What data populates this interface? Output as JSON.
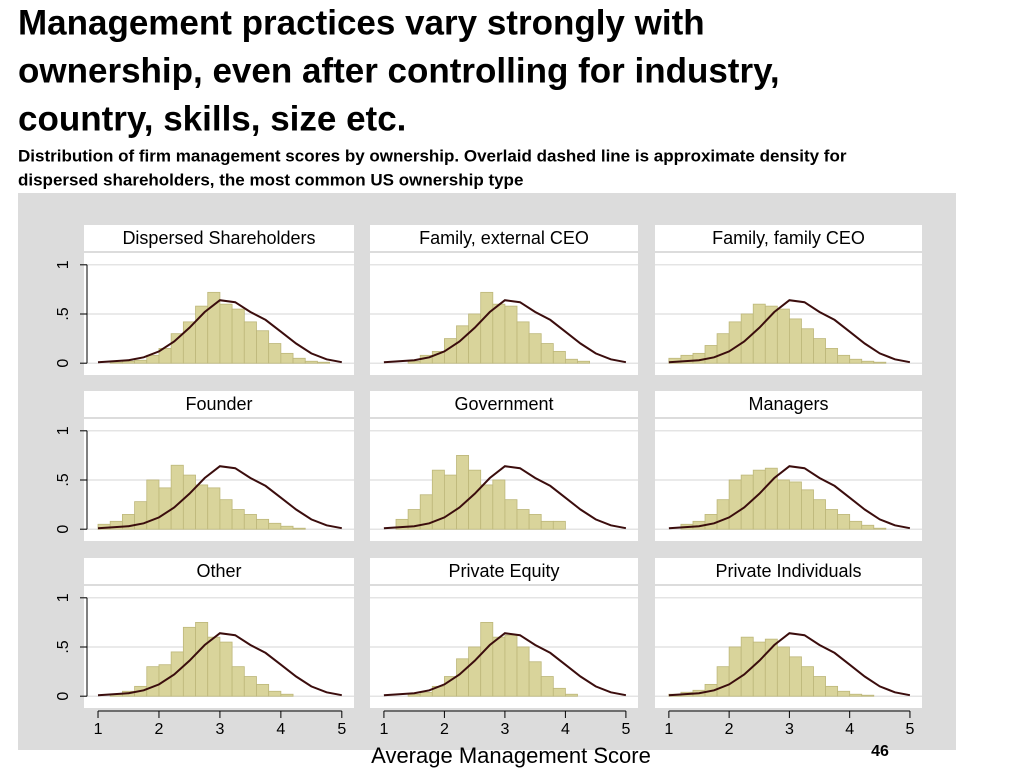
{
  "chart_data": {
    "type": "histogram",
    "title": [
      "Management practices vary strongly with",
      "ownership, even after controlling for industry,",
      "country, skills, size etc."
    ],
    "subtitle": [
      "Distribution of firm management scores by ownership. Overlaid dashed line is approximate density for",
      "dispersed shareholders, the most common US ownership type"
    ],
    "xlabel": "Average Management Score",
    "page_number": "46",
    "color": "#d9d49b",
    "line_color": "#3b0d0d",
    "xlim": [
      0.77,
      5.2
    ],
    "xticks": [
      1,
      2,
      3,
      4,
      5
    ],
    "ylim": [
      -0.12,
      1.12
    ],
    "yticks": [
      0,
      {
        "value": 0.5,
        "label": ".5"
      },
      1
    ],
    "grid": true,
    "bins": [
      1.0,
      1.2,
      1.4,
      1.6,
      1.8,
      2.0,
      2.2,
      2.4,
      2.6,
      2.8,
      3.0,
      3.2,
      3.4,
      3.6,
      3.8,
      4.0,
      4.2,
      4.4,
      4.6,
      4.8,
      5.0
    ],
    "density": {
      "x": [
        1,
        1.25,
        1.5,
        1.75,
        2,
        2.25,
        2.5,
        2.75,
        3,
        3.25,
        3.5,
        3.75,
        4,
        4.25,
        4.5,
        4.75,
        5
      ],
      "values": [
        0.01,
        0.02,
        0.03,
        0.06,
        0.12,
        0.22,
        0.36,
        0.52,
        0.64,
        0.62,
        0.52,
        0.44,
        0.32,
        0.2,
        0.1,
        0.04,
        0.01
      ]
    },
    "panels": [
      {
        "name": "Dispersed Shareholders",
        "values": [
          0,
          0.01,
          0.02,
          0.03,
          0.08,
          0.15,
          0.3,
          0.42,
          0.58,
          0.72,
          0.6,
          0.55,
          0.42,
          0.33,
          0.2,
          0.1,
          0.05,
          0.02,
          0.01,
          0
        ]
      },
      {
        "name": "Family, external CEO",
        "values": [
          0,
          0,
          0.02,
          0.08,
          0.12,
          0.25,
          0.38,
          0.5,
          0.72,
          0.6,
          0.58,
          0.42,
          0.3,
          0.2,
          0.12,
          0.04,
          0.02,
          0,
          0,
          0
        ]
      },
      {
        "name": "Family, family CEO",
        "values": [
          0.05,
          0.08,
          0.1,
          0.18,
          0.3,
          0.42,
          0.5,
          0.6,
          0.58,
          0.55,
          0.45,
          0.35,
          0.25,
          0.15,
          0.08,
          0.04,
          0.02,
          0.01,
          0,
          0
        ]
      },
      {
        "name": "Founder",
        "values": [
          0.05,
          0.08,
          0.15,
          0.28,
          0.5,
          0.42,
          0.65,
          0.55,
          0.45,
          0.42,
          0.3,
          0.2,
          0.15,
          0.1,
          0.06,
          0.03,
          0.01,
          0,
          0,
          0
        ]
      },
      {
        "name": "Government",
        "values": [
          0,
          0.1,
          0.2,
          0.35,
          0.6,
          0.55,
          0.75,
          0.6,
          0.45,
          0.5,
          0.3,
          0.2,
          0.15,
          0.08,
          0.08,
          0,
          0,
          0,
          0,
          0
        ]
      },
      {
        "name": "Managers",
        "values": [
          0,
          0.05,
          0.08,
          0.15,
          0.3,
          0.5,
          0.55,
          0.6,
          0.62,
          0.5,
          0.48,
          0.4,
          0.3,
          0.2,
          0.15,
          0.08,
          0.04,
          0.01,
          0,
          0
        ]
      },
      {
        "name": "Other",
        "values": [
          0,
          0.02,
          0.05,
          0.1,
          0.3,
          0.32,
          0.45,
          0.7,
          0.75,
          0.6,
          0.55,
          0.3,
          0.2,
          0.12,
          0.05,
          0.02,
          0,
          0,
          0,
          0
        ]
      },
      {
        "name": "Private Equity",
        "values": [
          0,
          0,
          0.02,
          0.04,
          0.1,
          0.2,
          0.38,
          0.5,
          0.75,
          0.6,
          0.62,
          0.5,
          0.35,
          0.2,
          0.08,
          0.02,
          0,
          0,
          0,
          0
        ]
      },
      {
        "name": "Private Individuals",
        "values": [
          0.02,
          0.04,
          0.06,
          0.12,
          0.3,
          0.5,
          0.6,
          0.55,
          0.58,
          0.5,
          0.4,
          0.3,
          0.2,
          0.1,
          0.05,
          0.02,
          0.01,
          0,
          0,
          0
        ]
      }
    ]
  }
}
